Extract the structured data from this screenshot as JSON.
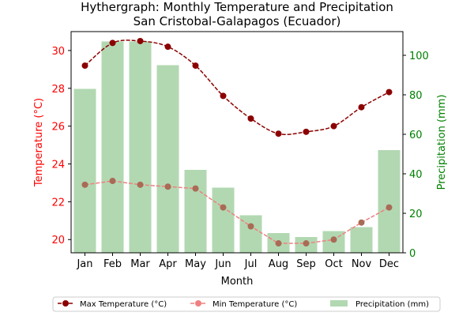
{
  "chart_data": {
    "type": "bar+line",
    "title_line1": "Hythergraph: Monthly Temperature and Precipitation",
    "title_line2": "San Cristobal-Galapagos (Ecuador)",
    "xlabel": "Month",
    "ylabel_left": "Temperature (°C)",
    "ylabel_right": "Precipitation (mm)",
    "categories": [
      "Jan",
      "Feb",
      "Mar",
      "Apr",
      "May",
      "Jun",
      "Jul",
      "Aug",
      "Sep",
      "Oct",
      "Nov",
      "Dec"
    ],
    "ylim_left": [
      19.3,
      31.0
    ],
    "ylim_right": [
      0,
      112
    ],
    "yticks_left": [
      "20",
      "22",
      "24",
      "26",
      "28",
      "30"
    ],
    "yticks_right": [
      "0",
      "20",
      "40",
      "60",
      "80",
      "100"
    ],
    "series": [
      {
        "name": "Max Temperature (°C)",
        "kind": "line",
        "axis": "left",
        "color": "#8b0000",
        "values": [
          29.2,
          30.4,
          30.5,
          30.2,
          29.2,
          27.6,
          26.4,
          25.6,
          25.7,
          26.0,
          27.0,
          27.8
        ]
      },
      {
        "name": "Min Temperature (°C)",
        "kind": "line",
        "axis": "left",
        "color": "#f08080",
        "values": [
          22.9,
          23.1,
          22.9,
          22.8,
          22.7,
          21.7,
          20.7,
          19.8,
          19.8,
          20.0,
          20.9,
          21.7
        ]
      },
      {
        "name": "Precipitation (mm)",
        "kind": "bar",
        "axis": "right",
        "color": "#b2d8b2",
        "values": [
          83,
          107,
          107,
          95,
          42,
          33,
          19,
          10,
          8,
          11,
          13,
          52
        ]
      }
    ],
    "legend_position": "bottom",
    "grid": false,
    "colors": {
      "left_axis": "#ff0000",
      "right_axis": "#008000"
    }
  }
}
